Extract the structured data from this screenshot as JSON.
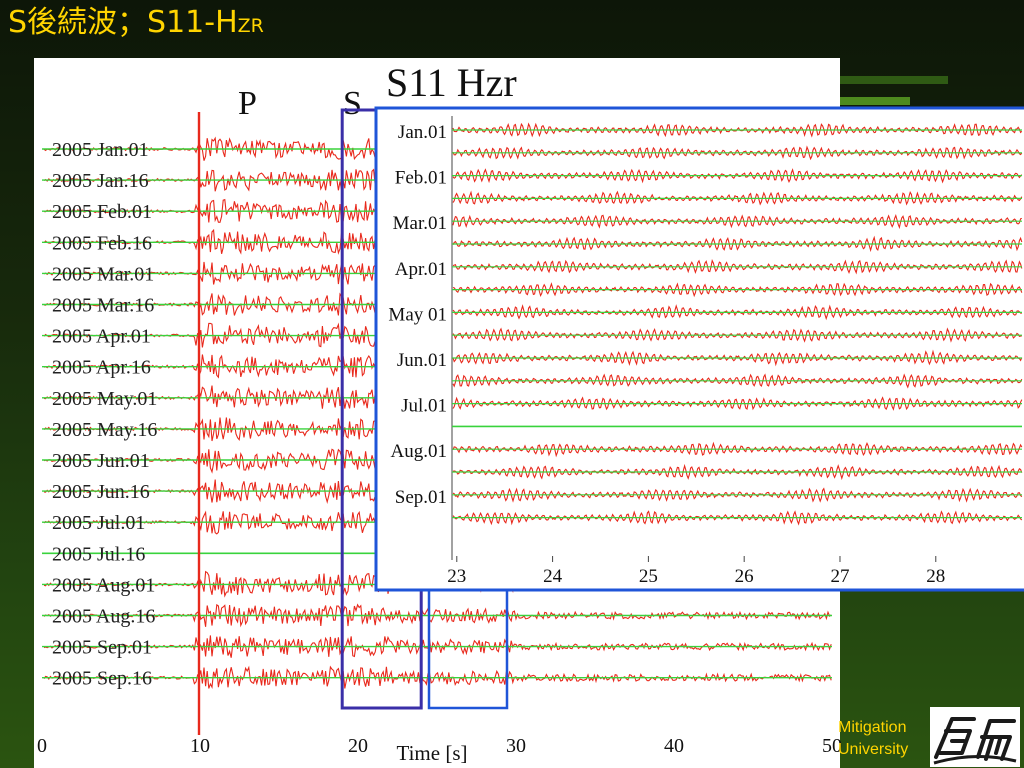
{
  "slide": {
    "title_main": "S後続波；S11-H",
    "title_sub": "ZR"
  },
  "footer": {
    "line1": "Mitigation",
    "line2": "University"
  },
  "colors": {
    "title": "#ffd400",
    "waveform": "#e8291c",
    "baseline": "#39d33c",
    "s_window_box": "#3a2fa8",
    "inset_border": "#1f55d8",
    "plot_background": "#ffffff"
  },
  "chart_data": [
    {
      "type": "line",
      "description_labels": {
        "phase_p": "P",
        "phase_s": "S"
      },
      "xlabel": "Time [s]",
      "ylabel": "",
      "xlim": [
        0,
        50
      ],
      "x_ticks": [
        "0",
        "10",
        "20",
        "30",
        "40",
        "50"
      ],
      "x_tick_values": [
        0,
        10,
        20,
        30,
        40,
        50
      ],
      "p_arrival_s": 10,
      "s_window_s": [
        19,
        24
      ],
      "rows": [
        {
          "label": "2005 Jan.01",
          "has_record": true
        },
        {
          "label": "2005 Jan.16",
          "has_record": true
        },
        {
          "label": "2005 Feb.01",
          "has_record": true
        },
        {
          "label": "2005 Feb.16",
          "has_record": true
        },
        {
          "label": "2005 Mar.01",
          "has_record": true
        },
        {
          "label": "2005 Mar.16",
          "has_record": true
        },
        {
          "label": "2005 Apr.01",
          "has_record": true
        },
        {
          "label": "2005 Apr.16",
          "has_record": true
        },
        {
          "label": "2005 May.01",
          "has_record": true
        },
        {
          "label": "2005 May.16",
          "has_record": true
        },
        {
          "label": "2005 Jun.01",
          "has_record": true
        },
        {
          "label": "2005 Jun.16",
          "has_record": true
        },
        {
          "label": "2005 Jul.01",
          "has_record": true
        },
        {
          "label": "2005 Jul.16",
          "has_record": false
        },
        {
          "label": "2005 Aug.01",
          "has_record": true
        },
        {
          "label": "2005 Aug.16",
          "has_record": true
        },
        {
          "label": "2005 Sep.01",
          "has_record": true
        },
        {
          "label": "2005 Sep.16",
          "has_record": true
        }
      ]
    },
    {
      "type": "line",
      "title": "S11 Hzr",
      "xlim": [
        22.95,
        28.9
      ],
      "x_ticks": [
        "23",
        "24",
        "25",
        "26",
        "27",
        "28"
      ],
      "x_tick_values": [
        23,
        24,
        25,
        26,
        27,
        28
      ],
      "labels": [
        "Jan.01",
        "Feb.01",
        "Mar.01",
        "Apr.01",
        "May 01",
        "Jun.01",
        "Jul.01",
        "Aug.01",
        "Sep.01"
      ],
      "label_rows": [
        0,
        2,
        4,
        6,
        8,
        10,
        12,
        14,
        16
      ],
      "row_count": 18,
      "missing_rows": [
        13
      ]
    }
  ]
}
